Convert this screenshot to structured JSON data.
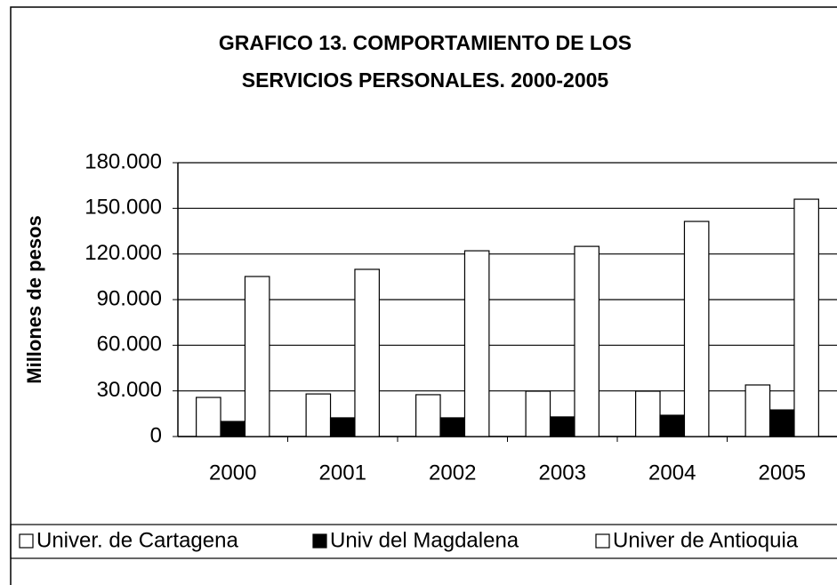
{
  "chart_data": {
    "type": "bar",
    "title": [
      "GRAFICO 13. COMPORTAMIENTO DE LOS",
      "SERVICIOS PERSONALES. 2000-2005"
    ],
    "y_label": "Millones de pesos",
    "categories": [
      "2000",
      "2001",
      "2002",
      "2003",
      "2004",
      "2005"
    ],
    "series": [
      {
        "name": "Univer. de Cartagena",
        "color": "#ffffff",
        "values": [
          25700,
          28000,
          27500,
          29800,
          29800,
          33900
        ]
      },
      {
        "name": "Univ del Magdalena",
        "color": "#000000",
        "values": [
          9900,
          12300,
          12300,
          12900,
          14000,
          17500
        ]
      },
      {
        "name": "Univer de Antioquia",
        "color": "#ffffff",
        "values": [
          105200,
          109900,
          122100,
          125000,
          141400,
          156000
        ]
      }
    ],
    "ylim": [
      0,
      180000
    ],
    "yticks": [
      0,
      {
        "value": 30000,
        "label": "30.000"
      },
      {
        "value": 60000,
        "label": "60.000"
      },
      {
        "value": 90000,
        "label": "90.000"
      },
      {
        "value": 120000,
        "label": "120.000"
      },
      {
        "value": 150000,
        "label": "150.000"
      },
      {
        "value": 180000,
        "label": "180.000"
      }
    ],
    "grid": true,
    "legend": "bottom"
  }
}
